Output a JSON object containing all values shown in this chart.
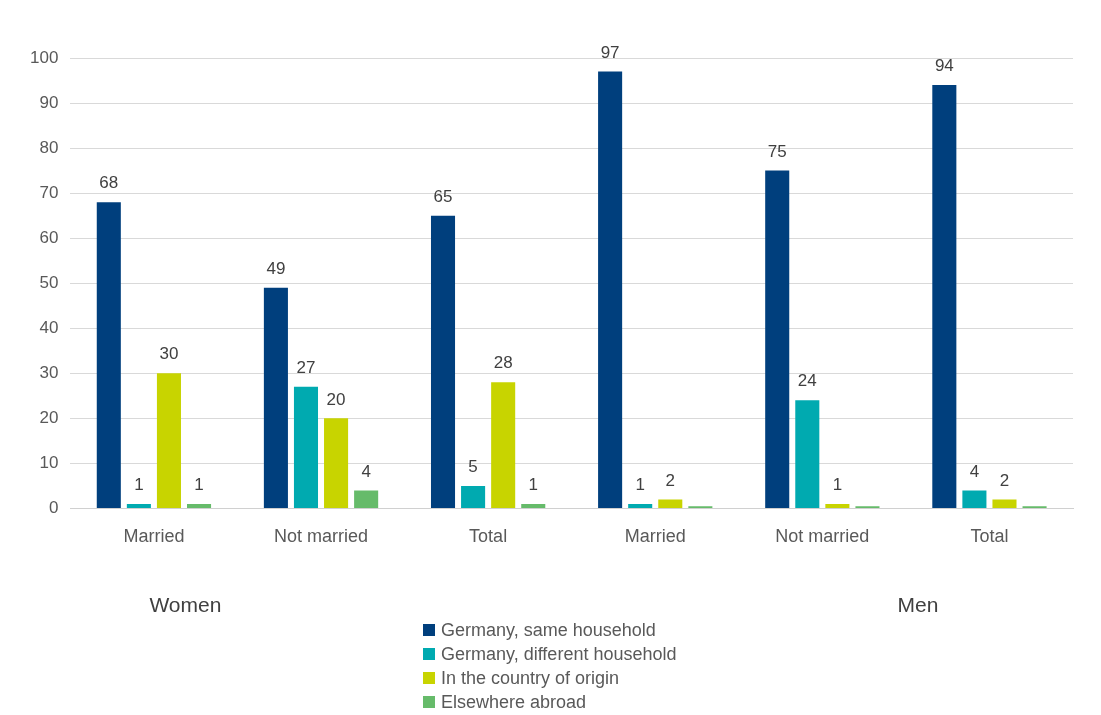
{
  "chart_data": {
    "type": "bar",
    "categories": [
      "Married",
      "Not married",
      "Total",
      "Married",
      "Not married",
      "Total"
    ],
    "series": [
      {
        "name": "Germany, same household",
        "color": "#003f7d",
        "values": [
          68,
          49,
          65,
          97,
          75,
          94
        ],
        "value_labels": [
          "68",
          "49",
          "65",
          "97",
          "75",
          "94"
        ]
      },
      {
        "name": "Germany, different household",
        "color": "#00aab0",
        "values": [
          1,
          27,
          5,
          1,
          24,
          4
        ],
        "value_labels": [
          "1",
          "27",
          "5",
          "1",
          "24",
          "4"
        ]
      },
      {
        "name": "In the country of origin",
        "color": "#c8d400",
        "values": [
          30,
          20,
          28,
          2,
          1,
          2
        ],
        "value_labels": [
          "30",
          "20",
          "28",
          "2",
          "1",
          "2"
        ]
      },
      {
        "name": "Elsewhere abroad",
        "color": "#66bb6a",
        "values": [
          1,
          4,
          1,
          0.5,
          0.5,
          0.5
        ],
        "value_labels": [
          "1",
          "4",
          "1",
          null,
          null,
          null
        ]
      }
    ],
    "annotations": [
      "Women",
      "Men"
    ],
    "ylim": [
      0,
      100
    ],
    "yticks": [
      0,
      10,
      20,
      30,
      40,
      50,
      60,
      70,
      80,
      90,
      100
    ],
    "grid": "y",
    "legend": "bottom"
  }
}
